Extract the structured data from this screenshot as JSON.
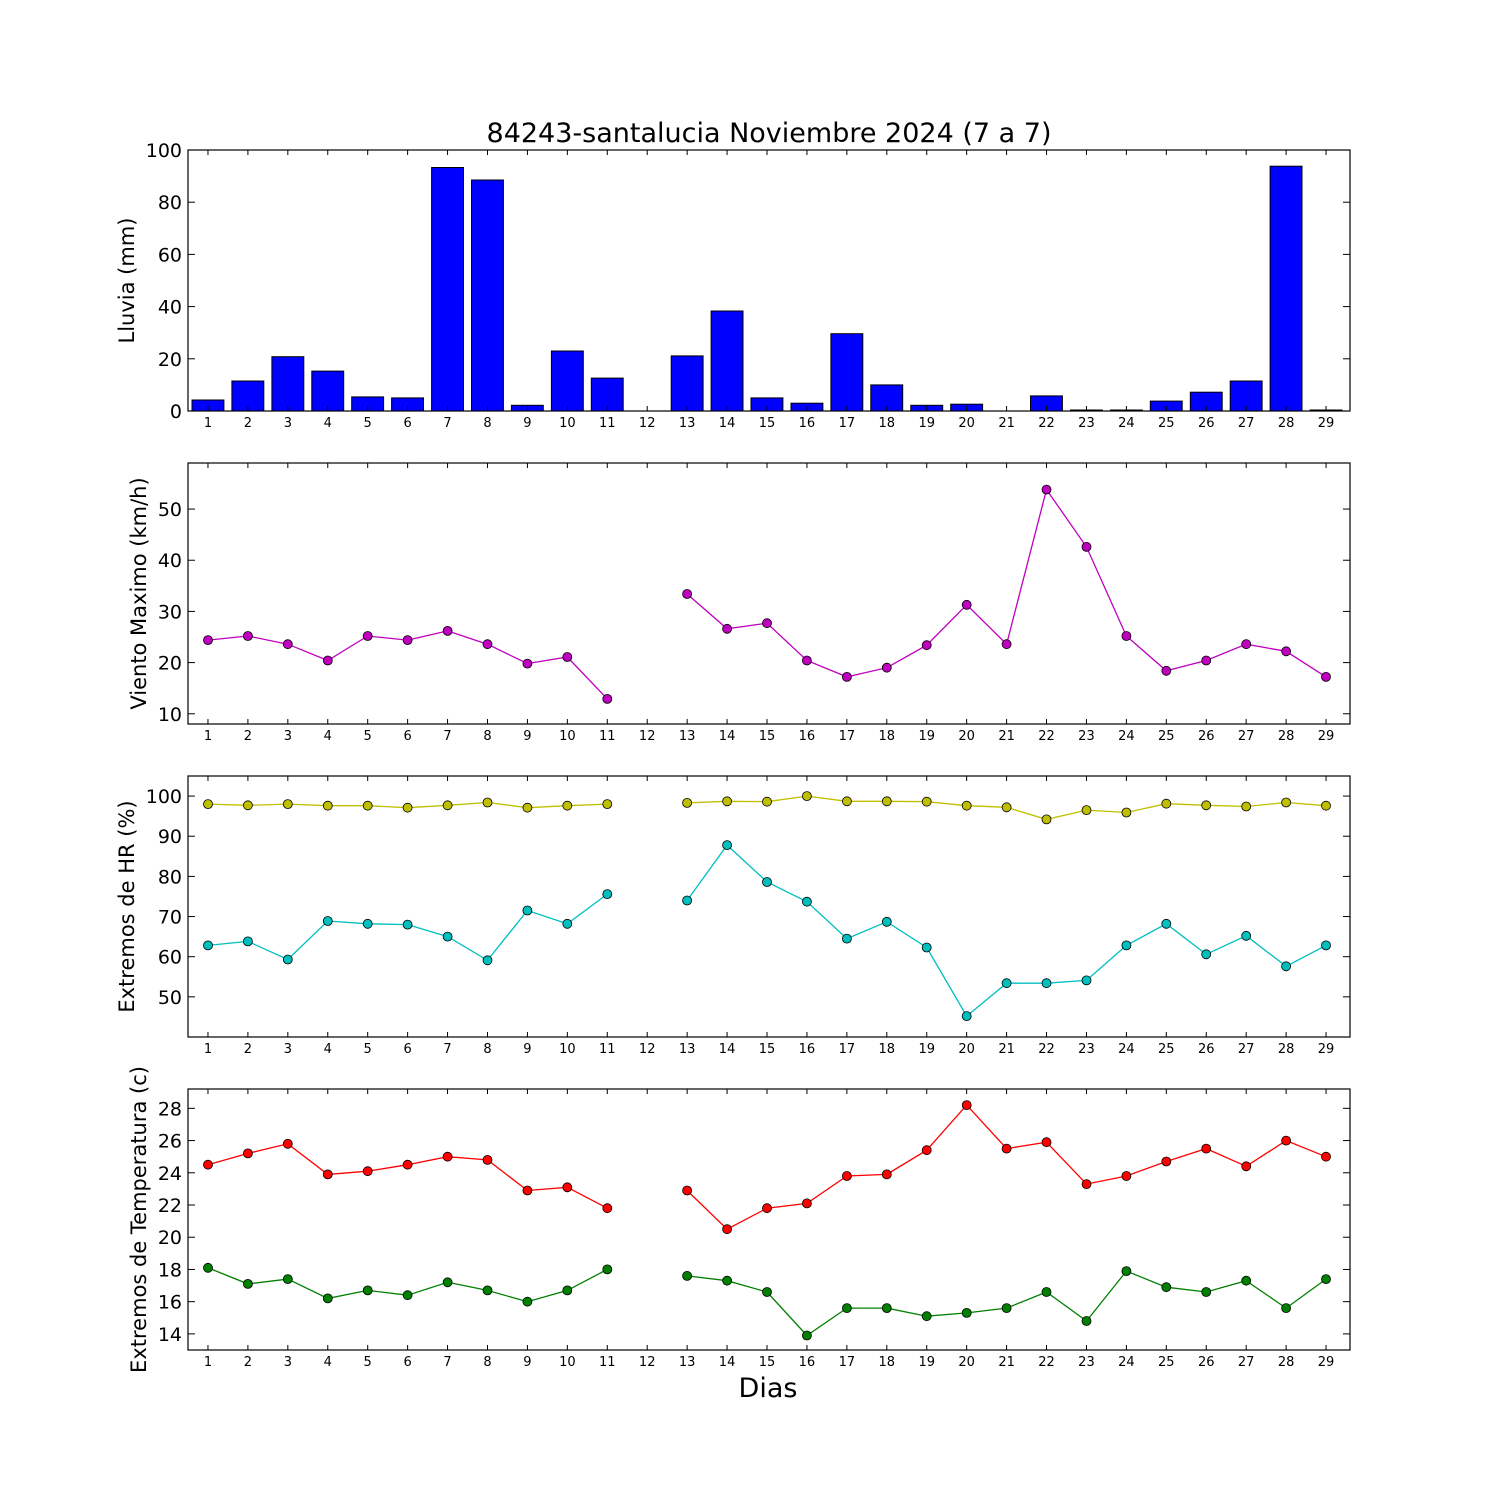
{
  "title": "84243-santalucia Noviembre 2024  (7 a 7)",
  "xlabel": "Dias",
  "colors": {
    "bar": "#0000ff",
    "wind": "#bf00bf",
    "hr_max": "#bfbf00",
    "hr_min": "#00bfbf",
    "t_max": "#ff0000",
    "t_min": "#008000"
  },
  "chart_data": [
    {
      "type": "bar",
      "ylabel": "Lluvia (mm)",
      "categories": [
        "1",
        "2",
        "3",
        "4",
        "5",
        "6",
        "7",
        "8",
        "9",
        "10",
        "11",
        "12",
        "13",
        "14",
        "15",
        "16",
        "17",
        "18",
        "19",
        "20",
        "21",
        "22",
        "23",
        "24",
        "25",
        "26",
        "27",
        "28",
        "29"
      ],
      "values": [
        4.2,
        11.5,
        20.8,
        15.3,
        5.4,
        5.0,
        93.3,
        88.5,
        2.2,
        23.0,
        12.6,
        0,
        21.1,
        38.3,
        5.0,
        3.0,
        29.6,
        10.0,
        2.2,
        2.6,
        0,
        5.8,
        0.4,
        0.4,
        3.8,
        7.2,
        11.5,
        93.8,
        0.4
      ],
      "ylim": [
        0,
        100
      ],
      "yticks": [
        0,
        20,
        40,
        60,
        80,
        100
      ]
    },
    {
      "type": "line",
      "ylabel": "Viento Maximo (km/h)",
      "categories": [
        "1",
        "2",
        "3",
        "4",
        "5",
        "6",
        "7",
        "8",
        "9",
        "10",
        "11",
        "12",
        "13",
        "14",
        "15",
        "16",
        "17",
        "18",
        "19",
        "20",
        "21",
        "22",
        "23",
        "24",
        "25",
        "26",
        "27",
        "28",
        "29"
      ],
      "series": [
        {
          "color_key": "wind",
          "values": [
            24.4,
            25.2,
            23.6,
            20.4,
            25.2,
            24.4,
            26.2,
            23.6,
            19.8,
            21.1,
            12.9,
            null,
            33.4,
            26.6,
            27.7,
            20.4,
            17.2,
            19.0,
            23.4,
            31.3,
            23.6,
            53.8,
            42.6,
            25.2,
            18.4,
            20.4,
            23.6,
            22.2,
            17.2
          ]
        }
      ],
      "ylim": [
        8,
        59
      ],
      "yticks": [
        10,
        20,
        30,
        40,
        50
      ]
    },
    {
      "type": "line",
      "ylabel": "Extremos de HR (%)",
      "categories": [
        "1",
        "2",
        "3",
        "4",
        "5",
        "6",
        "7",
        "8",
        "9",
        "10",
        "11",
        "12",
        "13",
        "14",
        "15",
        "16",
        "17",
        "18",
        "19",
        "20",
        "21",
        "22",
        "23",
        "24",
        "25",
        "26",
        "27",
        "28",
        "29"
      ],
      "series": [
        {
          "color_key": "hr_max",
          "values": [
            98,
            97.7,
            98,
            97.6,
            97.6,
            97.1,
            97.7,
            98.4,
            97.1,
            97.6,
            98,
            null,
            98.3,
            98.7,
            98.6,
            100,
            98.7,
            98.7,
            98.6,
            97.6,
            97.2,
            94.2,
            96.5,
            95.9,
            98.1,
            97.7,
            97.4,
            98.4,
            97.6
          ]
        },
        {
          "color_key": "hr_min",
          "values": [
            62.8,
            63.8,
            59.3,
            68.9,
            68.2,
            68.0,
            65.0,
            59.1,
            71.5,
            68.2,
            75.6,
            null,
            74.0,
            87.8,
            78.6,
            73.7,
            64.5,
            68.7,
            62.3,
            45.2,
            53.4,
            53.4,
            54.1,
            62.8,
            68.2,
            60.6,
            65.2,
            57.6,
            62.8
          ]
        }
      ],
      "ylim": [
        40,
        105
      ],
      "yticks": [
        50,
        60,
        70,
        80,
        90,
        100
      ]
    },
    {
      "type": "line",
      "ylabel": "Extremos de Temperatura (c)",
      "categories": [
        "1",
        "2",
        "3",
        "4",
        "5",
        "6",
        "7",
        "8",
        "9",
        "10",
        "11",
        "12",
        "13",
        "14",
        "15",
        "16",
        "17",
        "18",
        "19",
        "20",
        "21",
        "22",
        "23",
        "24",
        "25",
        "26",
        "27",
        "28",
        "29"
      ],
      "series": [
        {
          "color_key": "t_max",
          "values": [
            24.5,
            25.2,
            25.8,
            23.9,
            24.1,
            24.5,
            25.0,
            24.8,
            22.9,
            23.1,
            21.8,
            null,
            22.9,
            20.5,
            21.8,
            22.1,
            23.8,
            23.9,
            25.4,
            28.2,
            25.5,
            25.9,
            23.3,
            23.8,
            24.7,
            25.5,
            24.4,
            26.0,
            25.0
          ]
        },
        {
          "color_key": "t_min",
          "values": [
            18.1,
            17.1,
            17.4,
            16.2,
            16.7,
            16.4,
            17.2,
            16.7,
            16.0,
            16.7,
            18.0,
            null,
            17.6,
            17.3,
            16.6,
            13.9,
            15.6,
            15.6,
            15.1,
            15.3,
            15.6,
            16.6,
            14.8,
            17.9,
            16.9,
            16.6,
            17.3,
            15.6,
            17.4
          ]
        }
      ],
      "ylim": [
        13,
        29.2
      ],
      "yticks": [
        14,
        16,
        18,
        20,
        22,
        24,
        26,
        28
      ]
    }
  ]
}
